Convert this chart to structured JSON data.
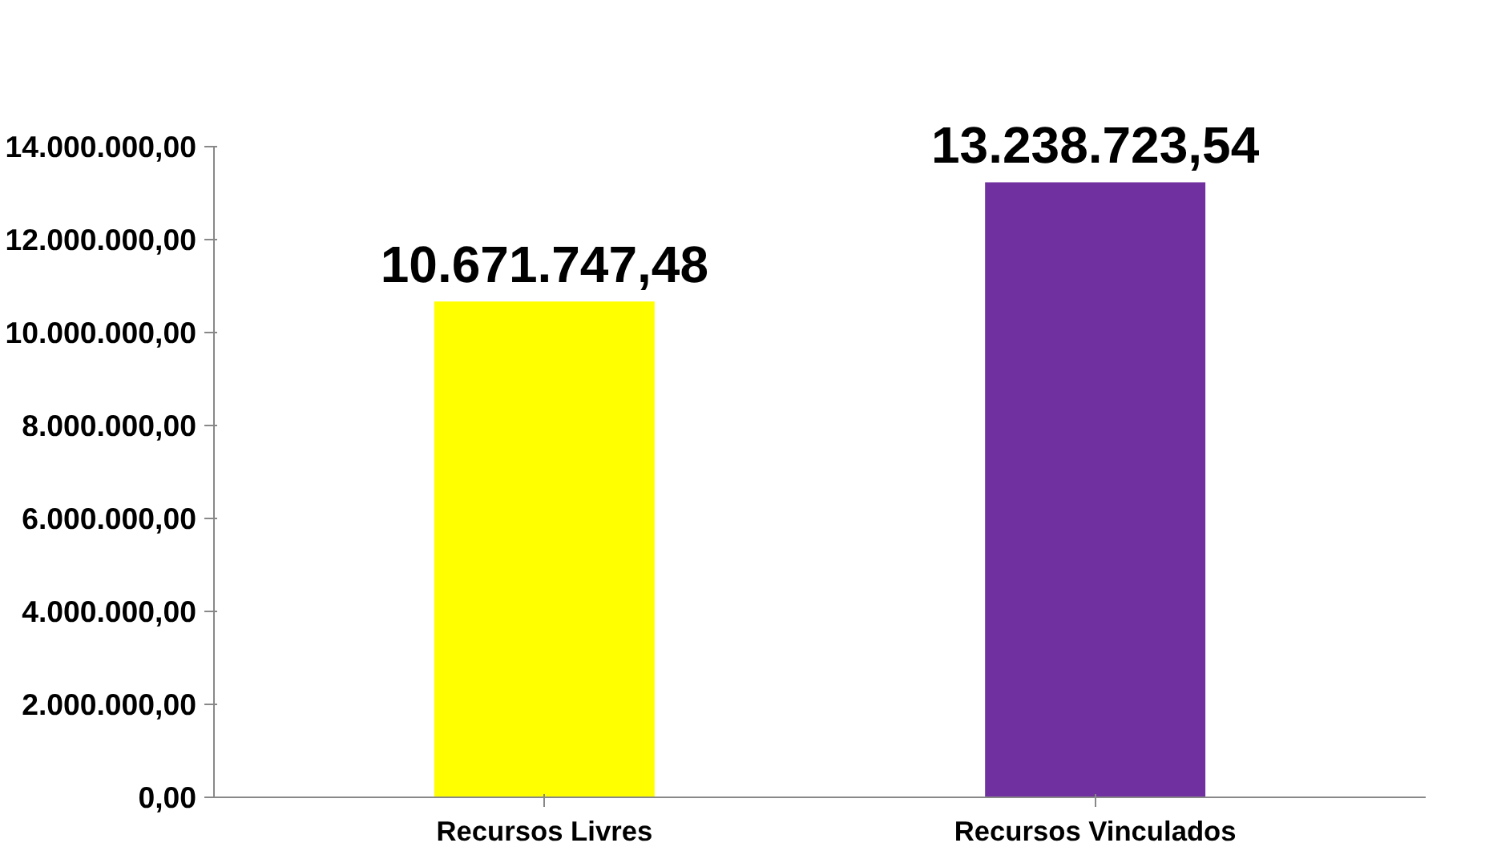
{
  "chart_data": {
    "type": "bar",
    "categories": [
      "Recursos Livres",
      "Recursos Vinculados"
    ],
    "values": [
      10671747.48,
      13238723.54
    ],
    "colors": [
      "#ffff00",
      "#7030a0"
    ],
    "value_labels": [
      "10.671.747,48",
      "13.238.723,54"
    ],
    "ylim": [
      0,
      14000000
    ],
    "yticks": [
      {
        "value": 0,
        "label": "0,00"
      },
      {
        "value": 2000000,
        "label": "2.000.000,00"
      },
      {
        "value": 4000000,
        "label": "4.000.000,00"
      },
      {
        "value": 6000000,
        "label": "6.000.000,00"
      },
      {
        "value": 8000000,
        "label": "8.000.000,00"
      },
      {
        "value": 10000000,
        "label": "10.000.000,00"
      },
      {
        "value": 12000000,
        "label": "12.000.000,00"
      },
      {
        "value": 14000000,
        "label": "14.000.000,00"
      }
    ],
    "grid": false
  }
}
